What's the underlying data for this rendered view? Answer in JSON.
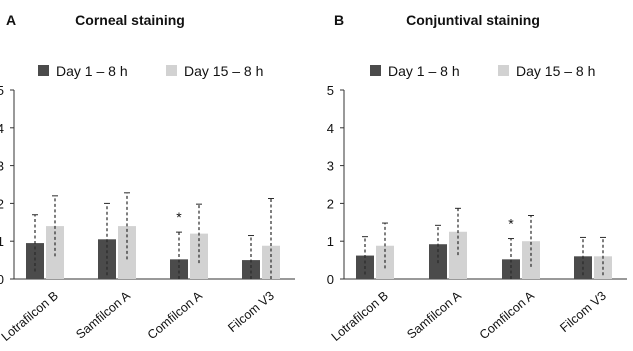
{
  "colors": {
    "day1": "#4b4b4b",
    "day15": "#d2d2d2",
    "axis": "#333333",
    "error": "#2a2a2a"
  },
  "chart_data": [
    {
      "panel": "A",
      "type": "bar",
      "title": "Corneal  staining",
      "categories": [
        "Lotrafilcon B",
        "Samfilcon A",
        "Comfilcon A",
        "Filcom V3"
      ],
      "series": [
        {
          "name": "Day 1 – 8 h",
          "values": [
            0.95,
            1.05,
            0.52,
            0.5
          ],
          "errors": [
            0.75,
            0.95,
            0.72,
            0.65
          ]
        },
        {
          "name": "Day 15 – 8 h",
          "values": [
            1.4,
            1.4,
            1.2,
            0.88
          ],
          "errors": [
            0.8,
            0.88,
            0.78,
            1.25
          ]
        }
      ],
      "annotations": [
        {
          "category": "Comfilcon A",
          "text": "*"
        }
      ],
      "yticks": [
        "0",
        "1",
        "2",
        "3",
        "4",
        "5"
      ],
      "ylim": [
        0,
        5
      ],
      "legend": "top"
    },
    {
      "panel": "B",
      "type": "bar",
      "title": "Conjuntival staining",
      "categories": [
        "Lotrafilcon B",
        "Samfilcon A",
        "Comfilcon A",
        "Filcom V3"
      ],
      "series": [
        {
          "name": "Day 1 – 8 h",
          "values": [
            0.62,
            0.92,
            0.52,
            0.6
          ],
          "errors": [
            0.5,
            0.5,
            0.55,
            0.5
          ]
        },
        {
          "name": "Day 15 – 8 h",
          "values": [
            0.88,
            1.25,
            1.0,
            0.6
          ],
          "errors": [
            0.6,
            0.62,
            0.68,
            0.5
          ]
        }
      ],
      "annotations": [
        {
          "category": "Comfilcon A",
          "text": "*"
        }
      ],
      "yticks": [
        "0",
        "1",
        "2",
        "3",
        "4",
        "5"
      ],
      "ylim": [
        0,
        5
      ],
      "legend": "top"
    }
  ]
}
